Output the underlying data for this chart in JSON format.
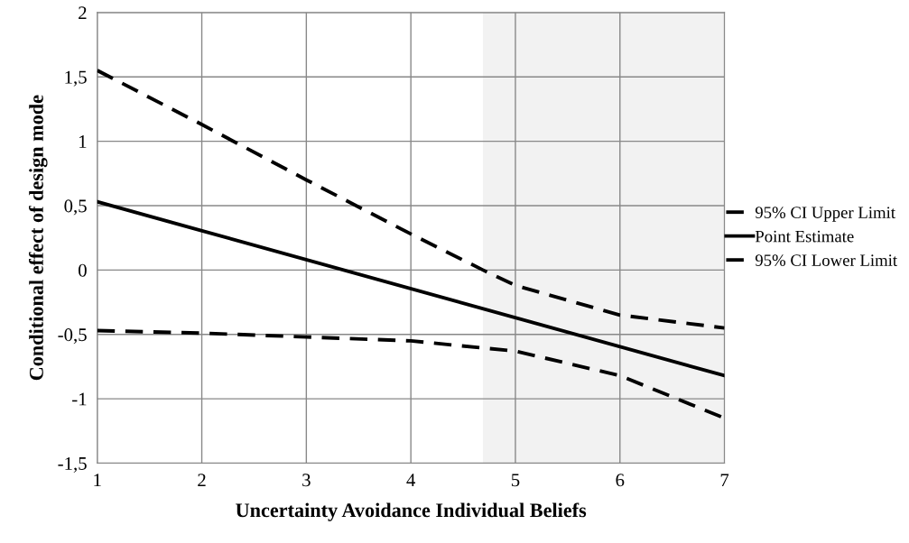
{
  "chart_data": {
    "type": "line",
    "xlabel": "Uncertainty Avoidance Individual Beliefs",
    "ylabel": "Conditional effect of design mode",
    "xlim": [
      1,
      7
    ],
    "xticks": [
      1,
      2,
      3,
      4,
      5,
      6,
      7
    ],
    "ylim": [
      -1.5,
      2
    ],
    "yticks": [
      {
        "value": -1.5,
        "label": "-1,5"
      },
      {
        "value": -1,
        "label": "-1"
      },
      {
        "value": -0.5,
        "label": "-0,5"
      },
      {
        "value": 0,
        "label": "0"
      },
      {
        "value": 0.5,
        "label": "0,5"
      },
      {
        "value": 1,
        "label": "1"
      },
      {
        "value": 1.5,
        "label": "1,5"
      },
      {
        "value": 2,
        "label": "2"
      }
    ],
    "grid": true,
    "legend": "right",
    "bands": [
      {
        "axis": "x",
        "from": 4.69,
        "to": 7,
        "color": "#f2f2f2"
      }
    ],
    "series": [
      {
        "name": "95% CI Upper Limit",
        "color": "#000000",
        "line_style": "dashed",
        "x": [
          1,
          2,
          3,
          4,
          4.69,
          5,
          6,
          7
        ],
        "values": [
          1.55,
          1.13,
          0.7,
          0.28,
          0.0,
          -0.12,
          -0.35,
          -0.45
        ]
      },
      {
        "name": "Point Estimate",
        "color": "#000000",
        "line_style": "solid",
        "x": [
          1,
          7
        ],
        "values": [
          0.53,
          -0.82
        ]
      },
      {
        "name": "95% CI Lower Limit",
        "color": "#000000",
        "line_style": "dashed",
        "x": [
          1,
          2,
          3,
          4,
          5,
          6,
          7
        ],
        "values": [
          -0.47,
          -0.49,
          -0.52,
          -0.55,
          -0.63,
          -0.82,
          -1.15
        ]
      }
    ]
  }
}
